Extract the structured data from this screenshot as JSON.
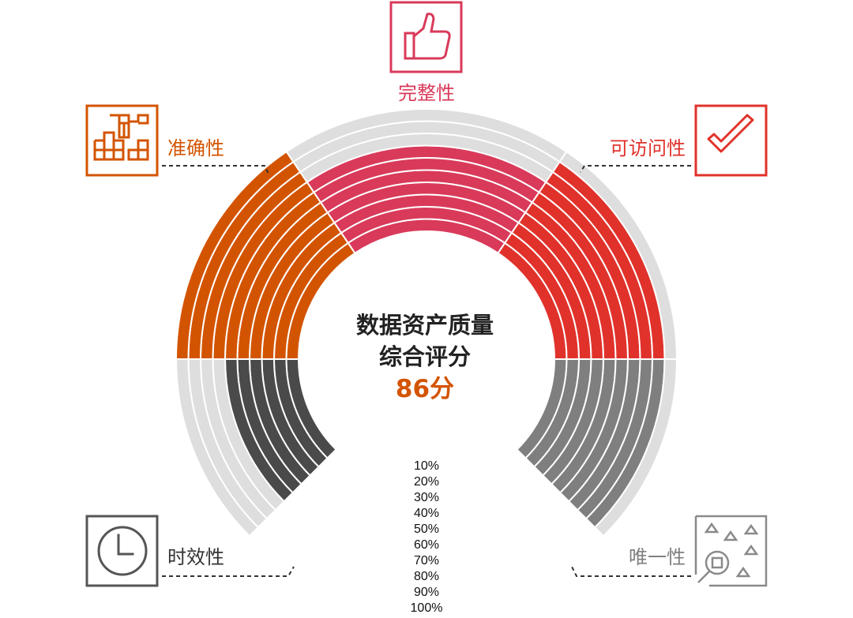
{
  "chart_data": {
    "type": "radial-bar",
    "title_lines": [
      "数据资产质量",
      "综合评分"
    ],
    "score": "86分",
    "score_color": "#d35400",
    "track_color": "#dedede",
    "ring_labels": [
      "10%",
      "20%",
      "30%",
      "40%",
      "50%",
      "60%",
      "70%",
      "80%",
      "90%",
      "100%"
    ],
    "categories": [
      {
        "name": "时效性",
        "icon": "clock-icon",
        "color": "#4a4a4a",
        "label_color": "#333333",
        "icon_color": "#555555",
        "value": 60
      },
      {
        "name": "准确性",
        "icon": "blocks-icon",
        "color": "#d35400",
        "label_color": "#d35400",
        "icon_color": "#d35400",
        "value": 100
      },
      {
        "name": "完整性",
        "icon": "thumbs-up-icon",
        "color": "#d93a5a",
        "label_color": "#d93a5a",
        "icon_color": "#d93a5a",
        "value": 70
      },
      {
        "name": "可访问性",
        "icon": "check-icon",
        "color": "#e0322b",
        "label_color": "#e0322b",
        "icon_color": "#e0322b",
        "value": 90
      },
      {
        "name": "唯一性",
        "icon": "shapes-search-icon",
        "color": "#7f7f7f",
        "label_color": "#7f7f7f",
        "icon_color": "#8a8a8a",
        "value": 90
      }
    ]
  }
}
